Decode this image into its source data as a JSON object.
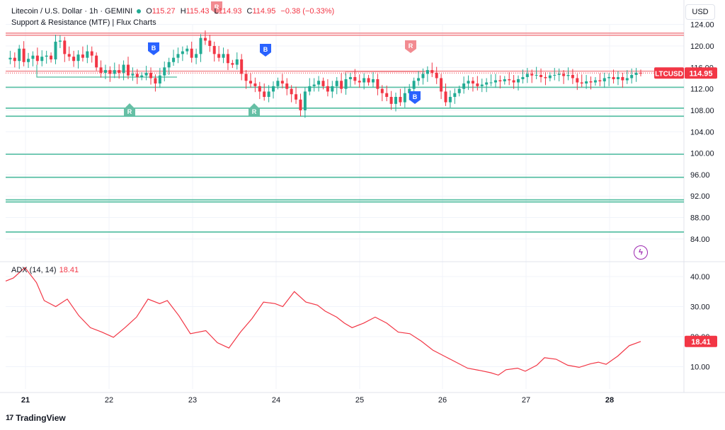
{
  "legend": {
    "title": "Litecoin / U.S. Dollar · 1h · GEMINI",
    "open_label": "O",
    "open": "115.27",
    "high_label": "H",
    "high": "115.43",
    "low_label": "L",
    "low": "114.93",
    "close_label": "C",
    "close": "114.95",
    "change": "−0.38 (−0.33%)",
    "indicator": "Support & Resistance (MTF) | Flux Charts"
  },
  "currency_button": "USD",
  "price_axis_ticks": [
    "124.00",
    "120.00",
    "116.00",
    "112.00",
    "108.00",
    "104.00",
    "100.00",
    "96.00",
    "92.00",
    "88.00",
    "84.00"
  ],
  "last_price_label": {
    "symbol": "LTCUSD",
    "price": "114.95"
  },
  "adx": {
    "label": "ADX (14, 14)",
    "value": "18.41",
    "ticks": [
      "40.00",
      "30.00",
      "20.00",
      "10.00"
    ]
  },
  "time_axis": [
    "21",
    "22",
    "23",
    "24",
    "25",
    "26",
    "27",
    "28"
  ],
  "brand": "TradingView",
  "colors": {
    "up": "#22ab94",
    "down": "#f23645",
    "support": "#4dbb9e",
    "resistance": "#f28b91",
    "buy": "#2962ff"
  },
  "chart_data": {
    "type": "candlestick",
    "ylim": [
      82,
      126
    ],
    "support_levels": [
      112.3,
      108.4,
      106.9,
      99.8,
      95.5,
      91.3,
      90.9,
      85.3
    ],
    "resistance_levels": [
      122.4,
      122.0,
      115.3
    ],
    "price": [
      [
        0,
        117.5
      ],
      [
        1,
        117.8
      ],
      [
        2,
        117.2
      ],
      [
        3,
        119.5
      ],
      [
        4,
        117.0
      ],
      [
        5,
        117.6
      ],
      [
        6,
        118.2
      ],
      [
        7,
        117.2
      ],
      [
        8,
        118.0
      ],
      [
        9,
        118.2
      ],
      [
        10,
        117.5
      ],
      [
        11,
        120.8
      ],
      [
        12,
        121.0
      ],
      [
        13,
        118.5
      ],
      [
        14,
        118.0
      ],
      [
        15,
        117.2
      ],
      [
        16,
        118.4
      ],
      [
        17,
        117.8
      ],
      [
        18,
        119.0
      ],
      [
        19,
        118.2
      ],
      [
        20,
        116.0
      ],
      [
        21,
        115.0
      ],
      [
        22,
        115.5
      ],
      [
        23,
        114.8
      ],
      [
        24,
        115.5
      ],
      [
        25,
        115.0
      ],
      [
        26,
        116.5
      ],
      [
        27,
        114.5
      ],
      [
        28,
        114.8
      ],
      [
        29,
        114.2
      ],
      [
        30,
        114.5
      ],
      [
        31,
        115.0
      ],
      [
        32,
        114.0
      ],
      [
        33,
        113.0
      ],
      [
        34,
        114.5
      ],
      [
        35,
        116.0
      ],
      [
        36,
        117.0
      ],
      [
        37,
        117.8
      ],
      [
        38,
        118.5
      ],
      [
        39,
        119.0
      ],
      [
        40,
        119.5
      ],
      [
        41,
        117.8
      ],
      [
        42,
        118.5
      ],
      [
        43,
        121.5
      ],
      [
        44,
        121.0
      ],
      [
        45,
        120.0
      ],
      [
        46,
        118.5
      ],
      [
        47,
        117.8
      ],
      [
        48,
        118.5
      ],
      [
        49,
        116.8
      ],
      [
        50,
        116.5
      ],
      [
        51,
        117.5
      ],
      [
        52,
        114.8
      ],
      [
        53,
        113.5
      ],
      [
        54,
        113.0
      ],
      [
        55,
        112.5
      ],
      [
        56,
        111.5
      ],
      [
        57,
        110.5
      ],
      [
        58,
        111.5
      ],
      [
        59,
        112.5
      ],
      [
        60,
        113.5
      ],
      [
        61,
        113.0
      ],
      [
        62,
        112.0
      ],
      [
        63,
        111.0
      ],
      [
        64,
        110.0
      ],
      [
        65,
        108.0
      ],
      [
        66,
        111.5
      ],
      [
        67,
        112.5
      ],
      [
        68,
        112.8
      ],
      [
        69,
        113.5
      ],
      [
        70,
        112.5
      ],
      [
        71,
        111.5
      ],
      [
        72,
        112.5
      ],
      [
        73,
        113.5
      ],
      [
        74,
        112.0
      ],
      [
        75,
        113.8
      ],
      [
        76,
        114.2
      ],
      [
        77,
        113.5
      ],
      [
        78,
        113.2
      ],
      [
        79,
        114.0
      ],
      [
        80,
        113.2
      ],
      [
        81,
        113.8
      ],
      [
        82,
        112.0
      ],
      [
        83,
        111.2
      ],
      [
        84,
        110.5
      ],
      [
        85,
        109.2
      ],
      [
        86,
        110.5
      ],
      [
        87,
        109.5
      ],
      [
        88,
        111.2
      ],
      [
        89,
        112.0
      ],
      [
        90,
        113.5
      ],
      [
        91,
        114.0
      ],
      [
        92,
        114.8
      ],
      [
        93,
        115.5
      ],
      [
        94,
        115.0
      ],
      [
        95,
        114.0
      ],
      [
        96,
        111.5
      ],
      [
        97,
        109.5
      ],
      [
        98,
        110.5
      ],
      [
        99,
        111.2
      ],
      [
        100,
        112.0
      ],
      [
        101,
        113.0
      ],
      [
        102,
        113.5
      ],
      [
        103,
        113.0
      ],
      [
        104,
        112.5
      ],
      [
        105,
        112.8
      ],
      [
        106,
        113.2
      ],
      [
        107,
        113.2
      ],
      [
        108,
        113.6
      ],
      [
        109,
        113.4
      ],
      [
        110,
        113.8
      ],
      [
        111,
        113.6
      ],
      [
        112,
        113.2
      ],
      [
        113,
        113.8
      ],
      [
        114,
        114.2
      ],
      [
        115,
        114.8
      ],
      [
        116,
        114.5
      ],
      [
        117,
        114.6
      ],
      [
        118,
        114.2
      ],
      [
        119,
        114.0
      ],
      [
        120,
        114.5
      ],
      [
        121,
        114.6
      ],
      [
        122,
        114.8
      ],
      [
        123,
        114.4
      ],
      [
        124,
        114.6
      ],
      [
        125,
        114.0
      ],
      [
        126,
        113.2
      ],
      [
        127,
        113.0
      ],
      [
        128,
        113.4
      ],
      [
        129,
        113.2
      ],
      [
        130,
        113.6
      ],
      [
        131,
        113.4
      ],
      [
        132,
        114.0
      ],
      [
        133,
        114.2
      ],
      [
        134,
        113.8
      ],
      [
        135,
        114.2
      ],
      [
        136,
        113.6
      ],
      [
        137,
        114.0
      ],
      [
        138,
        114.6
      ],
      [
        139,
        115.0
      ],
      [
        140,
        114.95
      ]
    ],
    "adx_series": [
      [
        0,
        38.5
      ],
      [
        2,
        39.5
      ],
      [
        5,
        43.0
      ],
      [
        8,
        38.0
      ],
      [
        10,
        32.0
      ],
      [
        13,
        30.0
      ],
      [
        16,
        32.5
      ],
      [
        19,
        27.0
      ],
      [
        22,
        23.0
      ],
      [
        25,
        21.5
      ],
      [
        28,
        19.8
      ],
      [
        31,
        23.0
      ],
      [
        34,
        26.5
      ],
      [
        37,
        32.5
      ],
      [
        40,
        31.0
      ],
      [
        42,
        32.0
      ],
      [
        45,
        27.0
      ],
      [
        48,
        21.0
      ],
      [
        52,
        22.0
      ],
      [
        55,
        18.0
      ],
      [
        58,
        16.2
      ],
      [
        61,
        21.5
      ],
      [
        64,
        26.0
      ],
      [
        67,
        31.5
      ],
      [
        70,
        31.0
      ],
      [
        72,
        30.0
      ],
      [
        75,
        35.0
      ],
      [
        78,
        31.5
      ],
      [
        81,
        30.5
      ],
      [
        83,
        28.5
      ],
      [
        86,
        26.5
      ],
      [
        88,
        24.5
      ],
      [
        90,
        23.0
      ],
      [
        93,
        24.5
      ],
      [
        96,
        26.5
      ],
      [
        99,
        24.5
      ],
      [
        102,
        21.5
      ],
      [
        105,
        21.0
      ],
      [
        108,
        18.5
      ],
      [
        111,
        15.5
      ],
      [
        114,
        13.5
      ],
      [
        117,
        11.5
      ],
      [
        120,
        9.5
      ],
      [
        123,
        8.8
      ],
      [
        126,
        8.0
      ],
      [
        128,
        7.2
      ],
      [
        130,
        9.0
      ],
      [
        133,
        9.5
      ],
      [
        135,
        8.5
      ],
      [
        138,
        10.5
      ],
      [
        140,
        13.0
      ],
      [
        143,
        12.5
      ],
      [
        146,
        10.5
      ],
      [
        149,
        9.8
      ],
      [
        152,
        11.0
      ],
      [
        154,
        11.5
      ],
      [
        156,
        10.8
      ],
      [
        159,
        13.5
      ],
      [
        162,
        17.0
      ],
      [
        165,
        18.41
      ]
    ],
    "signals": [
      {
        "label": "B",
        "kind": "buy",
        "x": 0.0
      },
      {
        "label": "R",
        "kind": "resistance",
        "x": 0.0
      },
      {
        "label": "B",
        "kind": "buy",
        "x": 0.0
      },
      {
        "label": "R",
        "kind": "resistance",
        "x": 0.0
      },
      {
        "label": "B",
        "kind": "buy",
        "x": 0.0
      },
      {
        "label": "R",
        "kind": "support",
        "x": 0.0
      },
      {
        "label": "R",
        "kind": "support",
        "x": 0.0
      }
    ]
  }
}
